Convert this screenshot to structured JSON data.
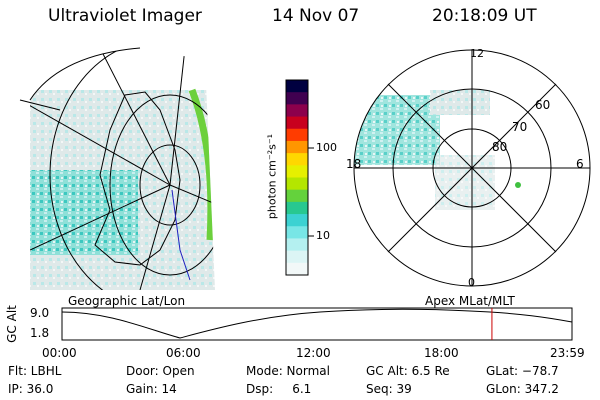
{
  "header": {
    "instrument": "Ultraviolet Imager",
    "date": "14 Nov 07",
    "time": "20:18:09 UT"
  },
  "colorbar": {
    "unit_label": "photon cm⁻²s⁻¹",
    "ticks": [
      "100",
      "10"
    ],
    "colors": [
      "#000040",
      "#400050",
      "#8c004c",
      "#c8001e",
      "#ff3c00",
      "#ff9600",
      "#ffd700",
      "#e6f000",
      "#b4e600",
      "#64d23c",
      "#28c890",
      "#3cd2d2",
      "#78e6e6",
      "#b4f0f0",
      "#dcf5f5",
      "#f2f8f8"
    ]
  },
  "left_panel": {
    "label": "Geographic Lat/Lon"
  },
  "right_panel": {
    "label": "Apex MLat/MLT",
    "mlt_labels": {
      "top": "12",
      "left": "18",
      "right": "6",
      "bottom": "0"
    },
    "mlat_labels": [
      "60",
      "70",
      "80"
    ]
  },
  "timeline": {
    "axis_label": "GC Alt",
    "y_ticks": [
      "9.0",
      "1.8"
    ],
    "x_ticks": [
      "00:00",
      "06:00",
      "12:00",
      "18:00",
      "23:59"
    ],
    "current_time_fraction": 0.843
  },
  "info": {
    "filter": "Flt: LBHL",
    "ip": "IP: 36.0",
    "door": "Door: Open",
    "gain": "Gain: 14",
    "mode": "Mode: Normal",
    "dsp": "Dsp:     6.1",
    "gc_alt": "GC Alt: 6.5 Re",
    "seq": "Seq: 39",
    "glat": "GLat: −78.7",
    "glon": "GLon: 347.2"
  }
}
